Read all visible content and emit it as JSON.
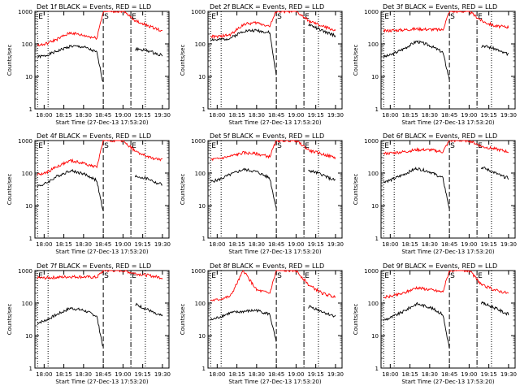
{
  "legend_text": "BLACK = Events, RED = LLD",
  "start_time_label": "Start Time (27-Dec-13 17:53:20)",
  "ylabel": "Counts/sec",
  "y_ticks": [
    "1",
    "10",
    "100",
    "1000"
  ],
  "marker_labels": [
    "E",
    "S",
    "E"
  ],
  "colors": {
    "events": "#000000",
    "lld": "#ff0000",
    "axes": "#000000"
  },
  "chart_data": [
    {
      "type": "line",
      "title": "Det 1f BLACK = Events, RED = LLD",
      "xlabel": "Start Time (27-Dec-13 17:53:20)",
      "ylabel": "Counts/sec",
      "x_ticks": [
        "18:00",
        "18:15",
        "18:30",
        "18:45",
        "19:00",
        "19:15",
        "19:30"
      ],
      "ylim": [
        1,
        1000
      ],
      "y_scale": "log",
      "markers": [
        {
          "label": "E",
          "x": "17:55",
          "style": "dotted"
        },
        {
          "label": "E",
          "x": "18:03",
          "style": "dotted"
        },
        {
          "label": "S",
          "x": "18:45",
          "style": "dashed"
        },
        {
          "label": "E",
          "x": "19:06",
          "style": "dash-dot"
        },
        {
          "label": "E",
          "x": "19:17",
          "style": "dotted"
        }
      ],
      "series": [
        {
          "name": "Events",
          "color": "black",
          "x": [
            "17:55",
            "18:00",
            "18:10",
            "18:20",
            "18:30",
            "18:40",
            "18:45",
            "19:10",
            "19:20",
            "19:25",
            "19:30"
          ],
          "y": [
            40,
            42,
            60,
            85,
            80,
            55,
            6,
            70,
            60,
            50,
            45
          ]
        },
        {
          "name": "LLD",
          "color": "red",
          "x": [
            "17:55",
            "18:00",
            "18:10",
            "18:20",
            "18:30",
            "18:40",
            "18:45",
            "19:00",
            "19:10",
            "19:20",
            "19:30"
          ],
          "y": [
            90,
            95,
            140,
            220,
            180,
            150,
            1000,
            1000,
            500,
            350,
            250
          ]
        }
      ]
    },
    {
      "type": "line",
      "title": "Det 2f BLACK = Events, RED = LLD",
      "xlabel": "Start Time (27-Dec-13 17:53:20)",
      "ylabel": "Counts/sec",
      "x_ticks": [
        "18:00",
        "18:15",
        "18:30",
        "18:45",
        "19:00",
        "19:15",
        "19:30"
      ],
      "ylim": [
        1,
        1000
      ],
      "y_scale": "log",
      "markers": [
        {
          "label": "E",
          "x": "17:55",
          "style": "dotted"
        },
        {
          "label": "E",
          "x": "18:03",
          "style": "dotted"
        },
        {
          "label": "S",
          "x": "18:45",
          "style": "dashed"
        },
        {
          "label": "E",
          "x": "19:06",
          "style": "dash-dot"
        },
        {
          "label": "E",
          "x": "19:17",
          "style": "dotted"
        }
      ],
      "series": [
        {
          "name": "Events",
          "color": "black",
          "x": [
            "17:55",
            "18:00",
            "18:10",
            "18:20",
            "18:30",
            "18:40",
            "18:45",
            "19:10",
            "19:20",
            "19:25",
            "19:30"
          ],
          "y": [
            140,
            130,
            150,
            250,
            260,
            220,
            10,
            400,
            250,
            210,
            180
          ]
        },
        {
          "name": "LLD",
          "color": "red",
          "x": [
            "17:55",
            "18:00",
            "18:10",
            "18:20",
            "18:30",
            "18:40",
            "18:45",
            "19:00",
            "19:10",
            "19:20",
            "19:30"
          ],
          "y": [
            170,
            165,
            190,
            400,
            450,
            350,
            1000,
            1000,
            500,
            350,
            260
          ]
        }
      ]
    },
    {
      "type": "line",
      "title": "Det 3f BLACK = Events, RED = LLD",
      "xlabel": "Start Time (27-Dec-13 17:53:20)",
      "ylabel": "Counts/sec",
      "x_ticks": [
        "18:00",
        "18:15",
        "18:30",
        "18:45",
        "19:00",
        "19:15",
        "19:30"
      ],
      "ylim": [
        1,
        1000
      ],
      "y_scale": "log",
      "markers": [
        {
          "label": "E",
          "x": "17:55",
          "style": "dotted"
        },
        {
          "label": "E",
          "x": "18:03",
          "style": "dotted"
        },
        {
          "label": "S",
          "x": "18:45",
          "style": "dashed"
        },
        {
          "label": "E",
          "x": "19:06",
          "style": "dash-dot"
        },
        {
          "label": "E",
          "x": "19:17",
          "style": "dotted"
        }
      ],
      "series": [
        {
          "name": "Events",
          "color": "black",
          "x": [
            "17:55",
            "18:00",
            "18:10",
            "18:20",
            "18:30",
            "18:40",
            "18:45",
            "19:10",
            "19:20",
            "19:25",
            "19:30"
          ],
          "y": [
            40,
            45,
            70,
            120,
            90,
            55,
            8,
            90,
            70,
            55,
            48
          ]
        },
        {
          "name": "LLD",
          "color": "red",
          "x": [
            "17:55",
            "18:00",
            "18:10",
            "18:20",
            "18:30",
            "18:40",
            "18:45",
            "19:00",
            "19:10",
            "19:20",
            "19:30"
          ],
          "y": [
            250,
            260,
            270,
            290,
            280,
            270,
            1000,
            1000,
            500,
            350,
            330
          ]
        }
      ]
    },
    {
      "type": "line",
      "title": "Det 4f BLACK = Events, RED = LLD",
      "xlabel": "Start Time (27-Dec-13 17:53:20)",
      "ylabel": "Counts/sec",
      "x_ticks": [
        "18:00",
        "18:15",
        "18:30",
        "18:45",
        "19:00",
        "19:15",
        "19:30"
      ],
      "ylim": [
        1,
        1000
      ],
      "y_scale": "log",
      "markers": [
        {
          "label": "E",
          "x": "17:55",
          "style": "dotted"
        },
        {
          "label": "E",
          "x": "18:03",
          "style": "dotted"
        },
        {
          "label": "S",
          "x": "18:45",
          "style": "dashed"
        },
        {
          "label": "E",
          "x": "19:06",
          "style": "dash-dot"
        },
        {
          "label": "E",
          "x": "19:17",
          "style": "dotted"
        }
      ],
      "series": [
        {
          "name": "Events",
          "color": "black",
          "x": [
            "17:55",
            "18:00",
            "18:10",
            "18:20",
            "18:30",
            "18:40",
            "18:45",
            "19:10",
            "19:20",
            "19:25",
            "19:30"
          ],
          "y": [
            40,
            45,
            80,
            120,
            95,
            60,
            6,
            80,
            65,
            50,
            45
          ]
        },
        {
          "name": "LLD",
          "color": "red",
          "x": [
            "17:55",
            "18:00",
            "18:10",
            "18:20",
            "18:30",
            "18:40",
            "18:45",
            "19:00",
            "19:10",
            "19:20",
            "19:30"
          ],
          "y": [
            90,
            95,
            160,
            240,
            200,
            150,
            1000,
            1000,
            450,
            300,
            250
          ]
        }
      ]
    },
    {
      "type": "line",
      "title": "Det 5f BLACK = Events, RED = LLD",
      "xlabel": "Start Time (27-Dec-13 17:53:20)",
      "ylabel": "Counts/sec",
      "x_ticks": [
        "18:00",
        "18:15",
        "18:30",
        "18:45",
        "19:00",
        "19:15",
        "19:30"
      ],
      "ylim": [
        1,
        1000
      ],
      "y_scale": "log",
      "markers": [
        {
          "label": "E",
          "x": "17:55",
          "style": "dotted"
        },
        {
          "label": "E",
          "x": "18:03",
          "style": "dotted"
        },
        {
          "label": "S",
          "x": "18:45",
          "style": "dashed"
        },
        {
          "label": "E",
          "x": "19:06",
          "style": "dash-dot"
        },
        {
          "label": "E",
          "x": "19:17",
          "style": "dotted"
        }
      ],
      "series": [
        {
          "name": "Events",
          "color": "black",
          "x": [
            "17:55",
            "18:00",
            "18:10",
            "18:20",
            "18:30",
            "18:40",
            "18:45",
            "19:10",
            "19:20",
            "19:25",
            "19:30"
          ],
          "y": [
            55,
            60,
            90,
            130,
            110,
            70,
            8,
            120,
            90,
            70,
            60
          ]
        },
        {
          "name": "LLD",
          "color": "red",
          "x": [
            "17:55",
            "18:00",
            "18:10",
            "18:20",
            "18:30",
            "18:40",
            "18:45",
            "19:00",
            "19:10",
            "19:20",
            "19:30"
          ],
          "y": [
            260,
            270,
            330,
            420,
            390,
            320,
            1000,
            1000,
            500,
            380,
            300
          ]
        }
      ]
    },
    {
      "type": "line",
      "title": "Det 6f BLACK = Events, RED = LLD",
      "xlabel": "Start Time (27-Dec-13 17:53:20)",
      "ylabel": "Counts/sec",
      "x_ticks": [
        "18:00",
        "18:15",
        "18:30",
        "18:45",
        "19:00",
        "19:15",
        "19:30"
      ],
      "ylim": [
        1,
        1000
      ],
      "y_scale": "log",
      "markers": [
        {
          "label": "E",
          "x": "17:55",
          "style": "dotted"
        },
        {
          "label": "E",
          "x": "18:03",
          "style": "dotted"
        },
        {
          "label": "S",
          "x": "18:45",
          "style": "dashed"
        },
        {
          "label": "E",
          "x": "19:06",
          "style": "dash-dot"
        },
        {
          "label": "E",
          "x": "19:17",
          "style": "dotted"
        }
      ],
      "series": [
        {
          "name": "Events",
          "color": "black",
          "x": [
            "17:55",
            "18:00",
            "18:10",
            "18:20",
            "18:30",
            "18:40",
            "18:45",
            "19:10",
            "19:20",
            "19:25",
            "19:30"
          ],
          "y": [
            55,
            60,
            90,
            140,
            110,
            70,
            8,
            150,
            100,
            80,
            70
          ]
        },
        {
          "name": "LLD",
          "color": "red",
          "x": [
            "17:55",
            "18:00",
            "18:10",
            "18:20",
            "18:30",
            "18:40",
            "18:45",
            "19:00",
            "19:10",
            "19:20",
            "19:30"
          ],
          "y": [
            400,
            410,
            450,
            520,
            520,
            450,
            1000,
            1000,
            650,
            550,
            450
          ]
        }
      ]
    },
    {
      "type": "line",
      "title": "Det 7f BLACK = Events, RED = LLD",
      "xlabel": "Start Time (27-Dec-13 17:53:20)",
      "ylabel": "Counts/sec",
      "x_ticks": [
        "18:00",
        "18:15",
        "18:30",
        "18:45",
        "19:00",
        "19:15",
        "19:30"
      ],
      "ylim": [
        1,
        1000
      ],
      "y_scale": "log",
      "markers": [
        {
          "label": "E",
          "x": "17:55",
          "style": "dotted"
        },
        {
          "label": "E",
          "x": "18:03",
          "style": "dotted"
        },
        {
          "label": "S",
          "x": "18:45",
          "style": "dashed"
        },
        {
          "label": "E",
          "x": "19:06",
          "style": "dash-dot"
        },
        {
          "label": "E",
          "x": "19:17",
          "style": "dotted"
        }
      ],
      "series": [
        {
          "name": "Events",
          "color": "black",
          "x": [
            "17:55",
            "18:00",
            "18:10",
            "18:20",
            "18:30",
            "18:40",
            "18:45",
            "19:10",
            "19:20",
            "19:25",
            "19:30"
          ],
          "y": [
            25,
            28,
            45,
            70,
            60,
            40,
            4,
            90,
            60,
            45,
            40
          ]
        },
        {
          "name": "LLD",
          "color": "red",
          "x": [
            "17:55",
            "18:00",
            "18:10",
            "18:20",
            "18:30",
            "18:40",
            "18:45",
            "19:00",
            "19:10",
            "19:20",
            "19:30"
          ],
          "y": [
            600,
            590,
            620,
            650,
            640,
            620,
            1000,
            1000,
            800,
            700,
            600
          ]
        }
      ]
    },
    {
      "type": "line",
      "title": "Det 8f BLACK = Events, RED = LLD",
      "xlabel": "Start Time (27-Dec-13 17:53:20)",
      "ylabel": "Counts/sec",
      "x_ticks": [
        "18:00",
        "18:15",
        "18:30",
        "18:45",
        "19:00",
        "19:15",
        "19:30"
      ],
      "ylim": [
        1,
        1000
      ],
      "y_scale": "log",
      "markers": [
        {
          "label": "E",
          "x": "17:55",
          "style": "dotted"
        },
        {
          "label": "E",
          "x": "18:03",
          "style": "dotted"
        },
        {
          "label": "S",
          "x": "18:45",
          "style": "dashed"
        },
        {
          "label": "E",
          "x": "19:06",
          "style": "dash-dot"
        },
        {
          "label": "E",
          "x": "19:17",
          "style": "dotted"
        }
      ],
      "series": [
        {
          "name": "Events",
          "color": "black",
          "x": [
            "17:55",
            "18:00",
            "18:10",
            "18:20",
            "18:30",
            "18:40",
            "18:45",
            "19:10",
            "19:20",
            "19:25",
            "19:30"
          ],
          "y": [
            30,
            35,
            50,
            55,
            60,
            45,
            6,
            80,
            55,
            45,
            40
          ]
        },
        {
          "name": "LLD",
          "color": "red",
          "x": [
            "17:55",
            "18:00",
            "18:10",
            "18:20",
            "18:30",
            "18:40",
            "18:45",
            "19:00",
            "19:10",
            "19:20",
            "19:30"
          ],
          "y": [
            120,
            125,
            160,
            1000,
            250,
            200,
            1000,
            1000,
            350,
            200,
            150
          ]
        }
      ]
    },
    {
      "type": "line",
      "title": "Det 9f BLACK = Events, RED = LLD",
      "xlabel": "Start Time (27-Dec-13 17:53:20)",
      "ylabel": "Counts/sec",
      "x_ticks": [
        "18:00",
        "18:15",
        "18:30",
        "18:45",
        "19:00",
        "19:15",
        "19:30"
      ],
      "ylim": [
        1,
        1000
      ],
      "y_scale": "log",
      "markers": [
        {
          "label": "E",
          "x": "17:55",
          "style": "dotted"
        },
        {
          "label": "E",
          "x": "18:03",
          "style": "dotted"
        },
        {
          "label": "S",
          "x": "18:45",
          "style": "dashed"
        },
        {
          "label": "E",
          "x": "19:06",
          "style": "dash-dot"
        },
        {
          "label": "E",
          "x": "19:17",
          "style": "dotted"
        }
      ],
      "series": [
        {
          "name": "Events",
          "color": "black",
          "x": [
            "17:55",
            "18:00",
            "18:10",
            "18:20",
            "18:30",
            "18:40",
            "18:45",
            "19:10",
            "19:20",
            "19:25",
            "19:30"
          ],
          "y": [
            30,
            35,
            55,
            95,
            75,
            45,
            4,
            100,
            70,
            55,
            45
          ]
        },
        {
          "name": "LLD",
          "color": "red",
          "x": [
            "17:55",
            "18:00",
            "18:10",
            "18:20",
            "18:30",
            "18:40",
            "18:45",
            "19:00",
            "19:10",
            "19:20",
            "19:30"
          ],
          "y": [
            150,
            160,
            200,
            300,
            260,
            220,
            1000,
            1000,
            350,
            250,
            200
          ]
        }
      ]
    }
  ]
}
